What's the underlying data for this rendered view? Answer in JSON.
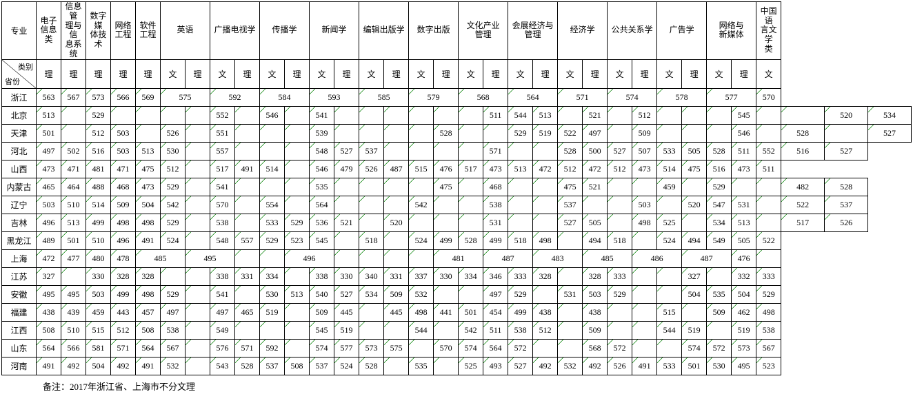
{
  "header": {
    "major_label": "专业",
    "category_label": "类别",
    "province_label": "省份",
    "wen": "文",
    "li": "理"
  },
  "majors": [
    {
      "name": "电子\n信息类",
      "span": 1,
      "cols": [
        "li"
      ]
    },
    {
      "name": "信息管\n理与信\n息系统",
      "span": 1,
      "cols": [
        "li"
      ]
    },
    {
      "name": "数字媒\n体技术",
      "span": 1,
      "cols": [
        "li"
      ]
    },
    {
      "name": "网络\n工程",
      "span": 1,
      "cols": [
        "li"
      ]
    },
    {
      "name": "软件\n工程",
      "span": 1,
      "cols": [
        "li"
      ]
    },
    {
      "name": "英语",
      "span": 2,
      "cols": [
        "wen",
        "li"
      ]
    },
    {
      "name": "广播电视学",
      "span": 2,
      "cols": [
        "wen",
        "li"
      ]
    },
    {
      "name": "传播学",
      "span": 2,
      "cols": [
        "wen",
        "li"
      ]
    },
    {
      "name": "新闻学",
      "span": 2,
      "cols": [
        "wen",
        "li"
      ]
    },
    {
      "name": "编辑出版学",
      "span": 2,
      "cols": [
        "wen",
        "li"
      ]
    },
    {
      "name": "数字出版",
      "span": 2,
      "cols": [
        "wen",
        "li"
      ]
    },
    {
      "name": "文化产业\n管理",
      "span": 2,
      "cols": [
        "wen",
        "li"
      ]
    },
    {
      "name": "会展经济与\n管理",
      "span": 2,
      "cols": [
        "wen",
        "li"
      ]
    },
    {
      "name": "经济学",
      "span": 2,
      "cols": [
        "wen",
        "li"
      ]
    },
    {
      "name": "公共关系学",
      "span": 2,
      "cols": [
        "wen",
        "li"
      ]
    },
    {
      "name": "广告学",
      "span": 2,
      "cols": [
        "wen",
        "li"
      ]
    },
    {
      "name": "网络与\n新媒体",
      "span": 2,
      "cols": [
        "wen",
        "li"
      ]
    },
    {
      "name": "中国语\n言文学\n类",
      "span": 1,
      "cols": [
        "wen"
      ]
    }
  ],
  "merged_provinces": [
    "浙江",
    "上海"
  ],
  "rows": [
    {
      "prov": "浙江",
      "vals": [
        "563",
        "567",
        "573",
        "566",
        "569",
        [
          "575",
          2
        ],
        [
          "592",
          2
        ],
        [
          "584",
          2
        ],
        [
          "593",
          2
        ],
        [
          "585",
          2
        ],
        [
          "579",
          2
        ],
        [
          "568",
          2
        ],
        [
          "564",
          2
        ],
        [
          "571",
          2
        ],
        [
          "574",
          2
        ],
        [
          "578",
          2
        ],
        [
          "577",
          2
        ],
        "570"
      ]
    },
    {
      "prov": "北京",
      "vals": [
        "513",
        "",
        "529",
        "",
        "",
        "",
        "",
        "552",
        "",
        "546",
        "",
        "541",
        "",
        "",
        "",
        "",
        "",
        "",
        "511",
        "544",
        "513",
        "",
        "521",
        "",
        "512",
        "",
        "",
        "",
        "545",
        "",
        "",
        "520",
        "534"
      ]
    },
    {
      "prov": "天津",
      "vals": [
        "501",
        "",
        "512",
        "503",
        "",
        "526",
        "",
        "551",
        "",
        "",
        "",
        "539",
        "",
        "",
        "",
        "",
        "528",
        "",
        "",
        "529",
        "519",
        "522",
        "497",
        "",
        "509",
        "",
        "",
        "",
        "546",
        "",
        "528",
        "",
        "527"
      ]
    },
    {
      "prov": "河北",
      "vals": [
        "497",
        "502",
        "516",
        "503",
        "513",
        "530",
        "",
        "557",
        "",
        "",
        "",
        "548",
        "527",
        "537",
        "",
        "",
        "",
        "",
        "571",
        "",
        "",
        "528",
        "500",
        "527",
        "507",
        "533",
        "505",
        "528",
        "511",
        "552",
        "516",
        "527"
      ]
    },
    {
      "prov": "山西",
      "vals": [
        "473",
        "471",
        "481",
        "471",
        "475",
        "512",
        "",
        "517",
        "491",
        "514",
        "",
        "546",
        "479",
        "526",
        "487",
        "515",
        "476",
        "517",
        "473",
        "513",
        "472",
        "512",
        "472",
        "512",
        "473",
        "514",
        "475",
        "516",
        "473",
        "511"
      ]
    },
    {
      "prov": "内蒙古",
      "vals": [
        "465",
        "464",
        "488",
        "468",
        "473",
        "529",
        "",
        "541",
        "",
        "",
        "",
        "535",
        "",
        "",
        "",
        "",
        "475",
        "",
        "468",
        "",
        "",
        "475",
        "521",
        "",
        "",
        "459",
        "",
        "529",
        "",
        "",
        "482",
        "528"
      ]
    },
    {
      "prov": "辽宁",
      "vals": [
        "503",
        "510",
        "514",
        "509",
        "504",
        "542",
        "",
        "570",
        "",
        "554",
        "",
        "564",
        "",
        "",
        "",
        "542",
        "",
        "",
        "538",
        "",
        "",
        "537",
        "",
        "",
        "503",
        "",
        "520",
        "547",
        "531",
        "",
        "522",
        "537"
      ]
    },
    {
      "prov": "吉林",
      "vals": [
        "496",
        "513",
        "499",
        "498",
        "498",
        "529",
        "",
        "538",
        "",
        "533",
        "529",
        "536",
        "521",
        "",
        "520",
        "",
        "",
        "",
        "531",
        "",
        "",
        "527",
        "505",
        "",
        "498",
        "525",
        "",
        "534",
        "513",
        "",
        "517",
        "526"
      ]
    },
    {
      "prov": "黑龙江",
      "vals": [
        "489",
        "501",
        "510",
        "496",
        "491",
        "524",
        "",
        "548",
        "557",
        "529",
        "523",
        "545",
        "",
        "518",
        "",
        "524",
        "499",
        "528",
        "499",
        "518",
        "498",
        "",
        "494",
        "518",
        "",
        "524",
        "494",
        "549",
        "505",
        "522"
      ]
    },
    {
      "prov": "上海",
      "vals": [
        "472",
        "477",
        "480",
        "478",
        [
          "485",
          2
        ],
        [
          "495",
          2
        ],
        "",
        "",
        [
          "496",
          2
        ],
        "",
        "",
        "",
        "",
        [
          "481",
          2
        ],
        [
          "487",
          2
        ],
        [
          "483",
          2
        ],
        [
          "485",
          2
        ],
        [
          "486",
          2
        ],
        [
          "487",
          2
        ],
        "476"
      ]
    },
    {
      "prov": "江苏",
      "vals": [
        "327",
        "",
        "330",
        "328",
        "328",
        "",
        "",
        "338",
        "331",
        "334",
        "",
        "338",
        "330",
        "340",
        "331",
        "337",
        "330",
        "334",
        "346",
        "333",
        "328",
        "",
        "328",
        "333",
        "",
        "",
        "327",
        "",
        "332",
        "333"
      ]
    },
    {
      "prov": "安徽",
      "vals": [
        "495",
        "495",
        "503",
        "499",
        "498",
        "529",
        "",
        "541",
        "",
        "530",
        "513",
        "540",
        "527",
        "534",
        "509",
        "532",
        "",
        "",
        "497",
        "529",
        "",
        "531",
        "503",
        "529",
        "",
        "",
        "504",
        "535",
        "504",
        "529"
      ]
    },
    {
      "prov": "福建",
      "vals": [
        "438",
        "439",
        "459",
        "443",
        "457",
        "497",
        "",
        "497",
        "465",
        "519",
        "",
        "509",
        "445",
        "",
        "445",
        "498",
        "441",
        "501",
        "454",
        "499",
        "438",
        "",
        "438",
        "",
        "",
        "515",
        "",
        "509",
        "462",
        "498"
      ]
    },
    {
      "prov": "江西",
      "vals": [
        "508",
        "510",
        "515",
        "512",
        "508",
        "538",
        "",
        "549",
        "",
        "",
        "",
        "545",
        "519",
        "",
        "",
        "544",
        "",
        "542",
        "511",
        "538",
        "512",
        "",
        "509",
        "",
        "",
        "544",
        "519",
        "",
        "519",
        "538"
      ]
    },
    {
      "prov": "山东",
      "vals": [
        "564",
        "566",
        "581",
        "571",
        "564",
        "567",
        "",
        "576",
        "571",
        "592",
        "",
        "574",
        "577",
        "573",
        "575",
        "",
        "570",
        "574",
        "564",
        "572",
        "",
        "",
        "568",
        "572",
        "",
        "",
        "574",
        "572",
        "573",
        "567"
      ]
    },
    {
      "prov": "河南",
      "vals": [
        "491",
        "492",
        "504",
        "492",
        "491",
        "532",
        "",
        "543",
        "528",
        "537",
        "508",
        "537",
        "524",
        "528",
        "",
        "535",
        "",
        "525",
        "493",
        "527",
        "492",
        "532",
        "492",
        "526",
        "491",
        "533",
        "501",
        "530",
        "495",
        "523"
      ]
    }
  ],
  "footnote": "备注：2017年浙江省、上海市不分文理",
  "colors": {
    "border": "#000000",
    "corner_mark": "#008000",
    "background": "#ffffff",
    "text": "#000000"
  }
}
